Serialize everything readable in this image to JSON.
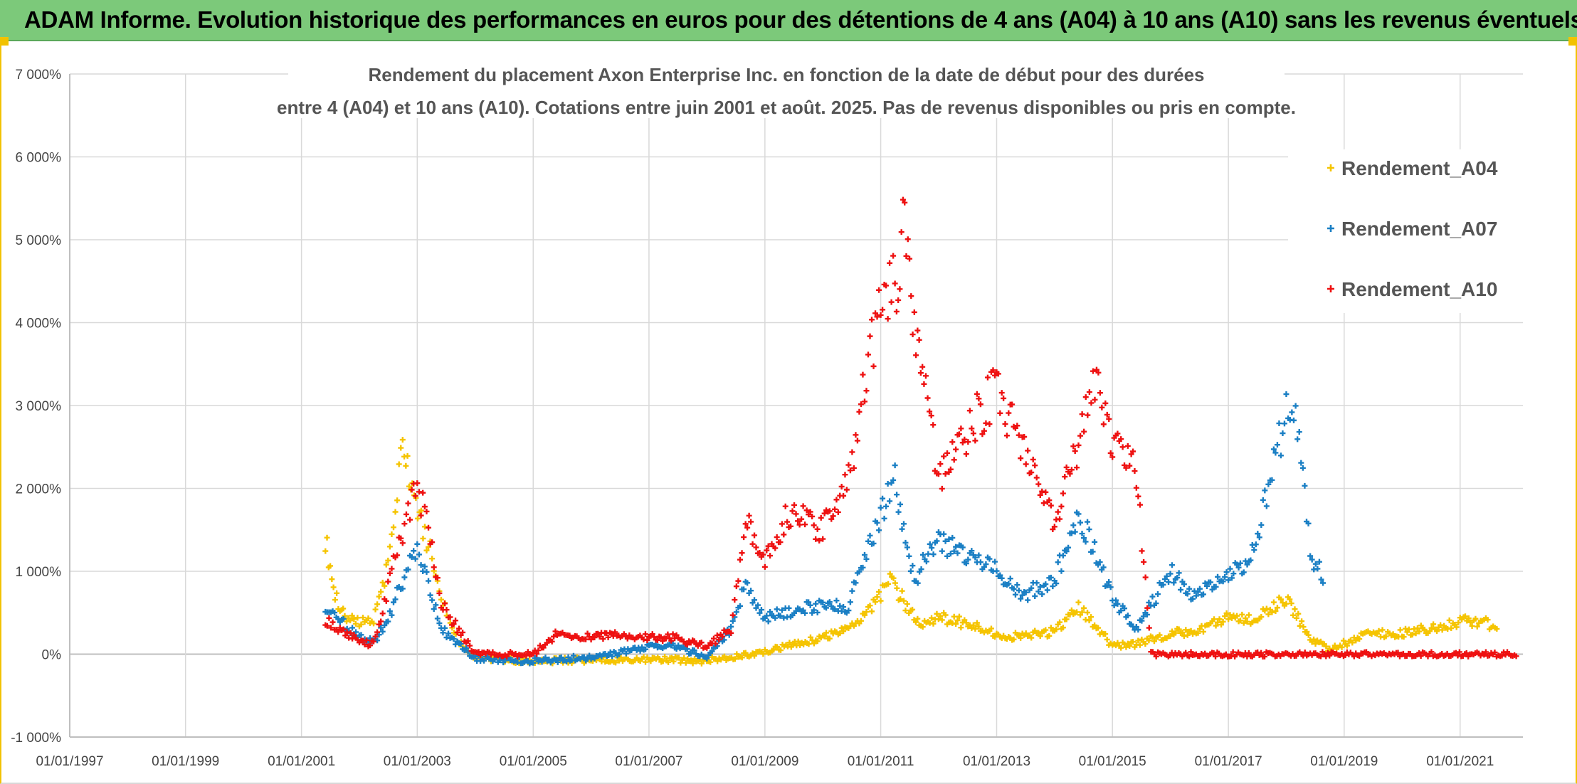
{
  "header": {
    "title": "ADAM Informe. Evolution historique des performances en euros pour des détentions de 4 ans (A04) à 10 ans (A10) sans les revenus éventuels"
  },
  "colors": {
    "banner": "#7cc97a",
    "frame_accent": "#f2c200",
    "A04": "#f5c400",
    "A07": "#1a7fc4",
    "A10": "#ee1111",
    "grid": "#d9d9d9",
    "zero_line": "#bfbfbf"
  },
  "chart_data": {
    "type": "scatter",
    "marker": "plus",
    "title_lines": [
      "Rendement du placement Axon Enterprise Inc. en fonction de la date de début pour des durées",
      "entre 4 (A04) et 10 ans (A10). Cotations entre juin 2001 et août. 2025. Pas de revenus disponibles ou pris en compte."
    ],
    "xlabel": "",
    "ylabel": "",
    "x_axis_type": "date",
    "xlim": [
      "1997-01-01",
      "2022-02-01"
    ],
    "ylim": [
      -1000,
      7000
    ],
    "x_tick_labels": [
      "01/01/1997",
      "01/01/1999",
      "01/01/2001",
      "01/01/2003",
      "01/01/2005",
      "01/01/2007",
      "01/01/2009",
      "01/01/2011",
      "01/01/2013",
      "01/01/2015",
      "01/01/2017",
      "01/01/2019",
      "01/01/2021"
    ],
    "y_tick_labels": [
      "-1 000%",
      "0%",
      "1 000%",
      "2 000%",
      "3 000%",
      "4 000%",
      "5 000%",
      "6 000%",
      "7 000%"
    ],
    "y_ticks": [
      -1000,
      0,
      1000,
      2000,
      3000,
      4000,
      5000,
      6000,
      7000
    ],
    "grid": true,
    "legend_position": "top-right",
    "series": [
      {
        "name": "Rendement_A04",
        "color": "#f5c400",
        "points": [
          [
            "2001-06-01",
            1400
          ],
          [
            "2001-08-01",
            700
          ],
          [
            "2001-10-01",
            450
          ],
          [
            "2002-01-01",
            380
          ],
          [
            "2002-04-01",
            420
          ],
          [
            "2002-07-01",
            1100
          ],
          [
            "2002-10-01",
            2500
          ],
          [
            "2002-12-01",
            1900
          ],
          [
            "2003-03-01",
            1400
          ],
          [
            "2003-06-01",
            700
          ],
          [
            "2003-09-01",
            200
          ],
          [
            "2004-01-01",
            -50
          ],
          [
            "2005-01-01",
            -80
          ],
          [
            "2006-01-01",
            -70
          ],
          [
            "2007-01-01",
            -60
          ],
          [
            "2008-01-01",
            -80
          ],
          [
            "2009-01-01",
            30
          ],
          [
            "2010-01-01",
            200
          ],
          [
            "2010-06-01",
            280
          ],
          [
            "2011-01-01",
            700
          ],
          [
            "2011-03-01",
            900
          ],
          [
            "2011-09-01",
            350
          ],
          [
            "2012-01-01",
            450
          ],
          [
            "2012-06-01",
            380
          ],
          [
            "2013-01-01",
            250
          ],
          [
            "2013-06-01",
            200
          ],
          [
            "2014-01-01",
            280
          ],
          [
            "2014-06-01",
            560
          ],
          [
            "2015-01-01",
            100
          ],
          [
            "2015-06-01",
            120
          ],
          [
            "2016-01-01",
            250
          ],
          [
            "2016-06-01",
            280
          ],
          [
            "2017-01-01",
            450
          ],
          [
            "2017-06-01",
            420
          ],
          [
            "2018-01-01",
            680
          ],
          [
            "2018-06-01",
            200
          ],
          [
            "2018-10-01",
            50
          ],
          [
            "2019-06-01",
            250
          ],
          [
            "2020-01-01",
            260
          ],
          [
            "2020-06-01",
            300
          ],
          [
            "2021-01-01",
            400
          ],
          [
            "2021-06-01",
            380
          ],
          [
            "2021-09-01",
            320
          ]
        ]
      },
      {
        "name": "Rendement_A07",
        "color": "#1a7fc4",
        "points": [
          [
            "2001-06-01",
            500
          ],
          [
            "2001-09-01",
            400
          ],
          [
            "2002-01-01",
            200
          ],
          [
            "2002-04-01",
            150
          ],
          [
            "2002-07-01",
            400
          ],
          [
            "2002-10-01",
            900
          ],
          [
            "2003-01-01",
            1300
          ],
          [
            "2003-03-01",
            900
          ],
          [
            "2003-06-01",
            300
          ],
          [
            "2004-01-01",
            -50
          ],
          [
            "2005-01-01",
            -80
          ],
          [
            "2006-01-01",
            -40
          ],
          [
            "2007-01-01",
            80
          ],
          [
            "2007-06-01",
            100
          ],
          [
            "2008-01-01",
            -30
          ],
          [
            "2008-06-01",
            300
          ],
          [
            "2008-09-01",
            820
          ],
          [
            "2009-01-01",
            450
          ],
          [
            "2009-06-01",
            500
          ],
          [
            "2010-01-01",
            600
          ],
          [
            "2010-06-01",
            550
          ],
          [
            "2011-01-01",
            1700
          ],
          [
            "2011-04-01",
            2100
          ],
          [
            "2011-08-01",
            900
          ],
          [
            "2012-01-01",
            1400
          ],
          [
            "2012-06-01",
            1200
          ],
          [
            "2013-01-01",
            1000
          ],
          [
            "2013-06-01",
            700
          ],
          [
            "2014-01-01",
            900
          ],
          [
            "2014-06-01",
            1700
          ],
          [
            "2015-01-01",
            700
          ],
          [
            "2015-06-01",
            300
          ],
          [
            "2016-01-01",
            1000
          ],
          [
            "2016-06-01",
            700
          ],
          [
            "2017-01-01",
            900
          ],
          [
            "2017-06-01",
            1200
          ],
          [
            "2018-01-01",
            2900
          ],
          [
            "2018-03-01",
            3000
          ],
          [
            "2018-06-01",
            1200
          ],
          [
            "2018-09-01",
            900
          ]
        ]
      },
      {
        "name": "Rendement_A10",
        "color": "#ee1111",
        "points": [
          [
            "2001-06-01",
            400
          ],
          [
            "2001-09-01",
            300
          ],
          [
            "2002-01-01",
            150
          ],
          [
            "2002-04-01",
            120
          ],
          [
            "2002-07-01",
            800
          ],
          [
            "2002-10-01",
            1500
          ],
          [
            "2003-01-01",
            2000
          ],
          [
            "2003-03-01",
            1600
          ],
          [
            "2003-06-01",
            600
          ],
          [
            "2004-01-01",
            0
          ],
          [
            "2005-01-01",
            0
          ],
          [
            "2005-06-01",
            250
          ],
          [
            "2006-01-01",
            200
          ],
          [
            "2006-06-01",
            250
          ],
          [
            "2007-01-01",
            200
          ],
          [
            "2007-06-01",
            200
          ],
          [
            "2008-01-01",
            100
          ],
          [
            "2008-06-01",
            300
          ],
          [
            "2008-09-01",
            1650
          ],
          [
            "2009-01-01",
            1100
          ],
          [
            "2009-06-01",
            1700
          ],
          [
            "2010-01-01",
            1500
          ],
          [
            "2010-06-01",
            2000
          ],
          [
            "2011-01-01",
            4300
          ],
          [
            "2011-04-01",
            4400
          ],
          [
            "2011-06-01",
            5200
          ],
          [
            "2011-08-01",
            4000
          ],
          [
            "2011-10-01",
            3300
          ],
          [
            "2012-01-01",
            2100
          ],
          [
            "2012-06-01",
            2600
          ],
          [
            "2013-01-01",
            3200
          ],
          [
            "2013-06-01",
            2500
          ],
          [
            "2014-01-01",
            1600
          ],
          [
            "2014-06-01",
            2500
          ],
          [
            "2014-09-01",
            3400
          ],
          [
            "2015-01-01",
            2600
          ],
          [
            "2015-06-01",
            2200
          ],
          [
            "2015-09-01",
            0
          ],
          [
            "2016-06-01",
            0
          ],
          [
            "2017-06-01",
            0
          ],
          [
            "2018-06-01",
            0
          ],
          [
            "2019-06-01",
            0
          ],
          [
            "2020-06-01",
            0
          ],
          [
            "2021-06-01",
            0
          ],
          [
            "2022-01-01",
            0
          ]
        ]
      }
    ]
  }
}
